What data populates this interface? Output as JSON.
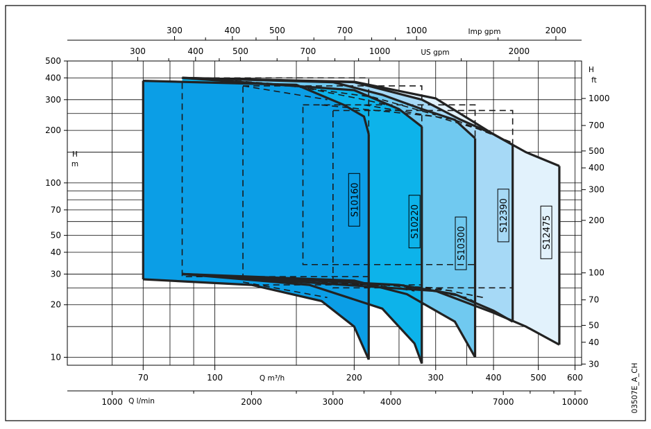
{
  "chart_data": {
    "type": "area",
    "figure_code": "03507E_A_CH",
    "grid": true,
    "axes": {
      "left": {
        "label_lines": [
          "H",
          "m"
        ],
        "scale": "log",
        "range": [
          9,
          500
        ],
        "ticks": [
          10,
          20,
          30,
          40,
          50,
          70,
          100,
          200,
          300,
          400,
          500
        ],
        "gridlines": [
          10,
          15,
          20,
          25,
          30,
          40,
          50,
          60,
          70,
          80,
          90,
          100,
          150,
          200,
          250,
          300,
          400,
          500
        ]
      },
      "right": {
        "label_lines": [
          "H",
          "ft"
        ],
        "scale": "log",
        "ticks": [
          30,
          40,
          50,
          70,
          100,
          200,
          300,
          400,
          500,
          700,
          1000
        ]
      },
      "bottom_m3h": {
        "label": "Q m³/h",
        "scale": "log",
        "range": [
          48,
          620
        ],
        "ticks": [
          70,
          100,
          200,
          300,
          400,
          500,
          600
        ]
      },
      "bottom_lmin": {
        "label": "Q l/min",
        "scale": "log",
        "ticks": [
          1000,
          2000,
          3000,
          4000,
          7000,
          10000
        ]
      },
      "top_usgpm": {
        "label": "US gpm",
        "scale": "log",
        "ticks": [
          300,
          400,
          500,
          700,
          1000,
          2000
        ]
      },
      "top_impgpm": {
        "label": "Imp gpm",
        "scale": "log",
        "ticks": [
          300,
          400,
          500,
          700,
          1000,
          2000
        ]
      }
    },
    "series": [
      {
        "name": "S12475",
        "color": "#e2f2fc",
        "solid_top": [
          [
            85,
            400
          ],
          [
            200,
            380
          ],
          [
            300,
            305
          ],
          [
            400,
            190
          ],
          [
            470,
            150
          ],
          [
            555,
            125
          ]
        ],
        "solid_bottom": [
          [
            85,
            30
          ],
          [
            300,
            24
          ],
          [
            400,
            18
          ],
          [
            470,
            15
          ],
          [
            555,
            11.8
          ]
        ],
        "right_edge": [
          555,
          11.8,
          125
        ],
        "dashed_top": [
          [
            210,
            280
          ],
          [
            330,
            230
          ],
          [
            440,
            170
          ]
        ],
        "dashed_bottom": [
          [
            250,
            26
          ],
          [
            350,
            22
          ],
          [
            440,
            16
          ]
        ]
      },
      {
        "name": "S12390",
        "color": "#a6d9f6",
        "solid_top": [
          [
            85,
            400
          ],
          [
            200,
            378
          ],
          [
            280,
            300
          ],
          [
            340,
            230
          ],
          [
            400,
            190
          ],
          [
            440,
            165
          ]
        ],
        "solid_bottom": [
          [
            85,
            30
          ],
          [
            250,
            26
          ],
          [
            330,
            23
          ],
          [
            400,
            18.5
          ],
          [
            440,
            16
          ]
        ],
        "right_edge": [
          440,
          16,
          165
        ],
        "dashed_top": [
          [
            170,
            280
          ],
          [
            300,
            240
          ],
          [
            380,
            200
          ]
        ],
        "dashed_bottom": [
          [
            170,
            27
          ],
          [
            300,
            25
          ],
          [
            380,
            22
          ]
        ]
      },
      {
        "name": "S10300",
        "color": "#70c9f0",
        "solid_top": [
          [
            85,
            400
          ],
          [
            180,
            378
          ],
          [
            230,
            320
          ],
          [
            280,
            265
          ],
          [
            330,
            230
          ],
          [
            365,
            180
          ]
        ],
        "solid_bottom": [
          [
            85,
            30
          ],
          [
            200,
            27.5
          ],
          [
            260,
            23
          ],
          [
            330,
            16
          ],
          [
            365,
            10
          ]
        ],
        "right_edge": [
          365,
          10,
          180
        ],
        "dashed_top": [
          [
            145,
            360
          ],
          [
            220,
            310
          ],
          [
            300,
            245
          ]
        ],
        "dashed_bottom": [
          [
            145,
            27
          ],
          [
            230,
            26
          ],
          [
            330,
            24
          ]
        ]
      },
      {
        "name": "S10220",
        "color": "#0db3ea",
        "solid_top": [
          [
            85,
            400
          ],
          [
            200,
            340
          ],
          [
            250,
            265
          ],
          [
            280,
            210
          ]
        ],
        "solid_bottom": [
          [
            85,
            30
          ],
          [
            160,
            26
          ],
          [
            230,
            19
          ],
          [
            270,
            12
          ],
          [
            280,
            9.2
          ]
        ],
        "right_edge": [
          280,
          9.2,
          210
        ],
        "dashed_top": [
          [
            90,
            400
          ],
          [
            145,
            365
          ],
          [
            210,
            300
          ],
          [
            250,
            270
          ]
        ],
        "dashed_bottom": [
          [
            90,
            30
          ],
          [
            145,
            28
          ],
          [
            220,
            26
          ],
          [
            270,
            24
          ]
        ]
      },
      {
        "name": "S10160",
        "color": "#0b9ee6",
        "solid_top": [
          [
            70,
            385
          ],
          [
            150,
            365
          ],
          [
            190,
            280
          ],
          [
            210,
            240
          ],
          [
            215,
            190
          ]
        ],
        "solid_bottom": [
          [
            70,
            28
          ],
          [
            120,
            26
          ],
          [
            170,
            21
          ],
          [
            200,
            15
          ],
          [
            215,
            9.7
          ]
        ],
        "right_edge": [
          215,
          9.7,
          190
        ],
        "dashed_top": [
          [
            115,
            360
          ],
          [
            175,
            300
          ]
        ],
        "dashed_bottom": [
          [
            115,
            27
          ],
          [
            175,
            22
          ]
        ]
      }
    ],
    "dashed_boxes": [
      {
        "q_left": 85,
        "q_right": 215,
        "h_top": 400,
        "h_bottom": 29
      },
      {
        "q_left": 115,
        "q_right": 280,
        "h_top": 360,
        "h_bottom": 26
      },
      {
        "q_left": 155,
        "q_right": 365,
        "h_top": 280,
        "h_bottom": 34
      },
      {
        "q_left": 180,
        "q_right": 440,
        "h_top": 260,
        "h_bottom": 25
      }
    ],
    "series_label_positions": [
      {
        "name": "S10160",
        "q": 200,
        "h": 80
      },
      {
        "name": "S10220",
        "q": 270,
        "h": 60
      },
      {
        "name": "S10300",
        "q": 340,
        "h": 45
      },
      {
        "name": "S12390",
        "q": 420,
        "h": 65
      },
      {
        "name": "S12475",
        "q": 520,
        "h": 52
      }
    ]
  }
}
